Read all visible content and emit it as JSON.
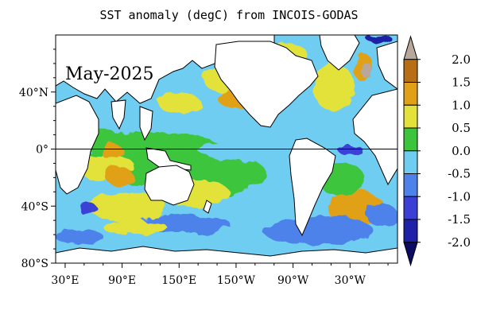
{
  "title": "SST anomaly (degC) from INCOIS-GODAS",
  "period_label": "May-2025",
  "lat_ticks": [
    {
      "lat": 40,
      "label": "40°N"
    },
    {
      "lat": 0,
      "label": "0°"
    },
    {
      "lat": -40,
      "label": "40°S"
    },
    {
      "lat": -80,
      "label": "80°S"
    }
  ],
  "lon_ticks": [
    {
      "lon": 30,
      "label": "30°E"
    },
    {
      "lon": 90,
      "label": "90°E"
    },
    {
      "lon": 150,
      "label": "150°E"
    },
    {
      "lon": 210,
      "label": "150°W"
    },
    {
      "lon": 270,
      "label": "90°W"
    },
    {
      "lon": 330,
      "label": "30°W"
    }
  ],
  "map_extent": {
    "lon_min": 20,
    "lon_max": 380,
    "lat_min": -80,
    "lat_max": 80
  },
  "colorbar": {
    "labels": [
      "2.0",
      "1.5",
      "1.0",
      "0.5",
      "0.0",
      "-0.5",
      "-1.0",
      "-1.5",
      "-2.0"
    ],
    "values": [
      2.0,
      1.5,
      1.0,
      0.5,
      0.0,
      -0.5,
      -1.0,
      -1.5,
      -2.0
    ],
    "bands": [
      {
        "range": "above 2.0",
        "color": "#b8a89c"
      },
      {
        "range": "1.5 to 2.0",
        "color": "#b86e14"
      },
      {
        "range": "1.0 to 1.5",
        "color": "#e0a118"
      },
      {
        "range": "0.5 to 1.0",
        "color": "#e3e23b"
      },
      {
        "range": "0.0 to 0.5",
        "color": "#3cc53c"
      },
      {
        "range": "-0.5 to 0.0",
        "color": "#6fcdf2"
      },
      {
        "range": "-1.0 to -0.5",
        "color": "#4d82ea"
      },
      {
        "range": "-1.5 to -1.0",
        "color": "#3b3fd6"
      },
      {
        "range": "-2.0 to -1.5",
        "color": "#1f22a8"
      },
      {
        "range": "below -2.0",
        "color": "#0b0c62"
      }
    ]
  },
  "land_color": "#ffffff",
  "coast_color": "#000000",
  "equator_line": true
}
